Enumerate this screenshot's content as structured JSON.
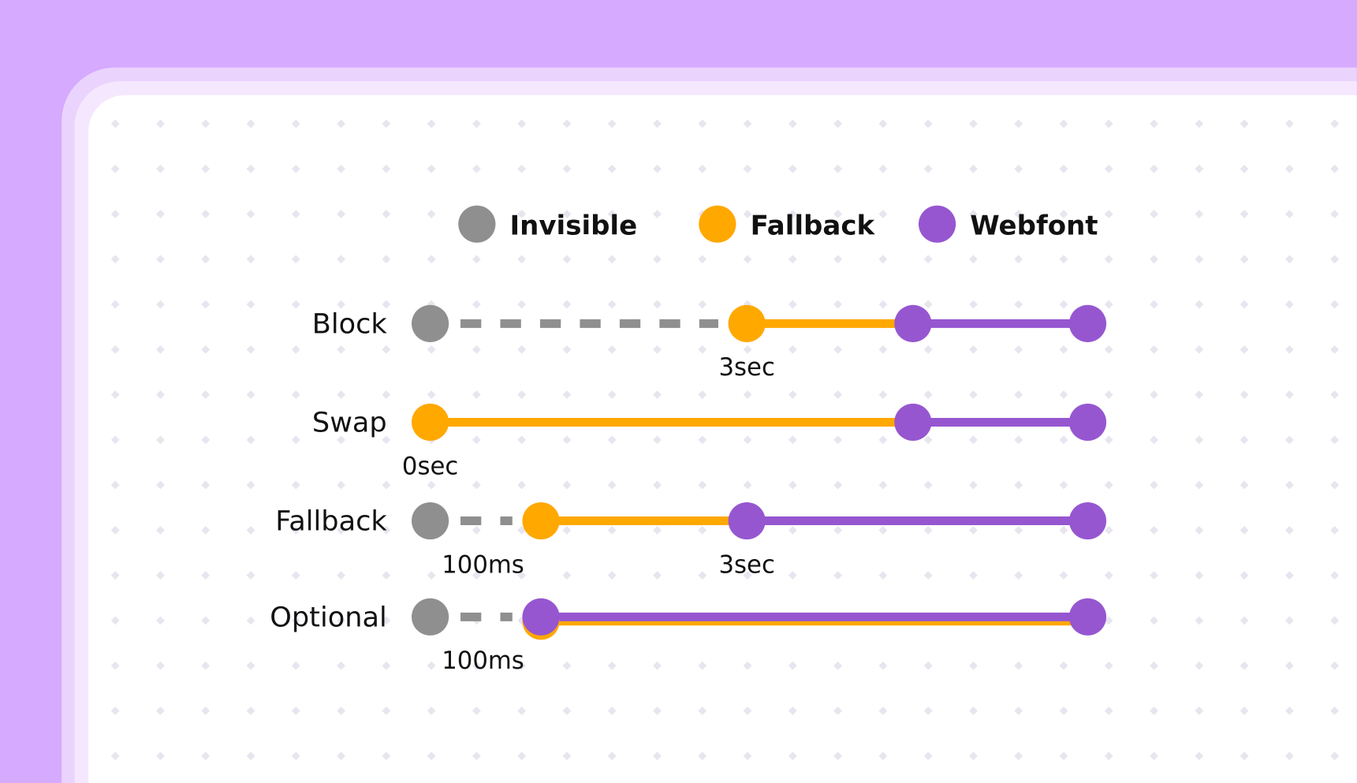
{
  "colors": {
    "background": "#d6aaff",
    "invisible": "#8f8f8f",
    "fallback": "#ffa800",
    "webfont": "#9656d0"
  },
  "legend": [
    {
      "key": "invisible",
      "label": "Invisible"
    },
    {
      "key": "fallback",
      "label": "Fallback"
    },
    {
      "key": "webfont",
      "label": "Webfont"
    }
  ],
  "rows": [
    {
      "label": "Block",
      "segments": [
        {
          "type": "invisible",
          "from": "start",
          "to": "3sec"
        },
        {
          "type": "fallback",
          "from": "3sec",
          "to": "swap"
        },
        {
          "type": "webfont",
          "from": "swap",
          "to": "end"
        }
      ],
      "ticks": [
        {
          "at": "3sec",
          "label": "3sec"
        }
      ]
    },
    {
      "label": "Swap",
      "segments": [
        {
          "type": "fallback",
          "from": "start",
          "to": "swap"
        },
        {
          "type": "webfont",
          "from": "swap",
          "to": "end"
        }
      ],
      "ticks": [
        {
          "at": "start",
          "label": "0sec"
        }
      ]
    },
    {
      "label": "Fallback",
      "segments": [
        {
          "type": "invisible",
          "from": "start",
          "to": "100ms"
        },
        {
          "type": "fallback",
          "from": "100ms",
          "to": "3sec"
        },
        {
          "type": "webfont",
          "from": "3sec",
          "to": "end"
        }
      ],
      "ticks": [
        {
          "at": "100ms",
          "label": "100ms"
        },
        {
          "at": "3sec",
          "label": "3sec"
        }
      ]
    },
    {
      "label": "Optional",
      "segments": [
        {
          "type": "invisible",
          "from": "start",
          "to": "100ms"
        },
        {
          "type": "webfont",
          "from": "100ms",
          "to": "end",
          "overlay": "fallback"
        }
      ],
      "ticks": [
        {
          "at": "100ms",
          "label": "100ms"
        }
      ]
    }
  ]
}
